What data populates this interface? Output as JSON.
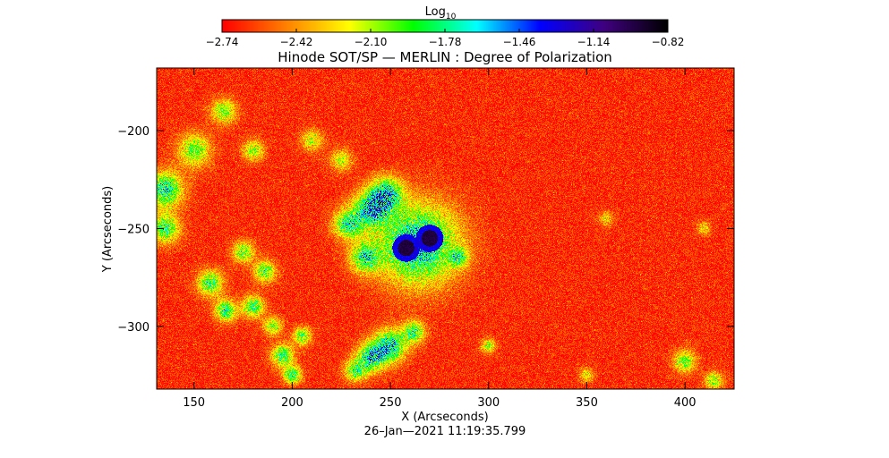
{
  "chart_data": {
    "type": "heatmap",
    "title": "Hinode SOT/SP — MERLIN : Degree of Polarization",
    "xlabel": "X (Arcseconds)",
    "ylabel": "Y (Arcseconds)",
    "xlim": [
      131,
      425
    ],
    "ylim": [
      -332,
      -168
    ],
    "x_ticks": [
      150,
      200,
      250,
      300,
      350,
      400
    ],
    "y_ticks": [
      -200,
      -250,
      -300
    ],
    "colorbar": {
      "label": "Log",
      "label_sub": "10",
      "range": [
        -2.74,
        -0.82
      ],
      "ticks": [
        "−2.74",
        "−2.42",
        "−2.10",
        "−1.78",
        "−1.46",
        "−1.14",
        "−0.82"
      ],
      "colormap": [
        "#ff0000",
        "#ff8000",
        "#ffff00",
        "#00ff00",
        "#00ffff",
        "#0000ff",
        "#400080",
        "#000000"
      ]
    },
    "features": {
      "background_level": -2.65,
      "sunspots": [
        {
          "x": 258,
          "y": -260,
          "peak": -0.9
        },
        {
          "x": 270,
          "y": -255,
          "peak": -0.9
        }
      ]
    },
    "timestamp": "26–Jan—2021 11:19:35.799"
  }
}
